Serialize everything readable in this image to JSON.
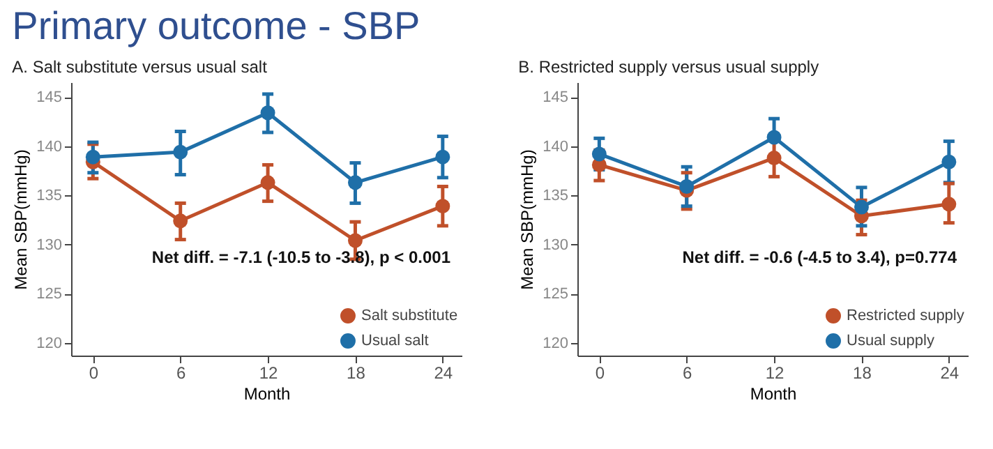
{
  "chart_data": [
    {
      "type": "other",
      "title": "Primary outcome - SBP"
    },
    {
      "type": "line",
      "title": "A. Salt substitute versus usual salt",
      "xlabel": "Month",
      "ylabel": "Mean SBP(mmHg)",
      "x": [
        0,
        6,
        12,
        18,
        24
      ],
      "xlim": [
        -1.5,
        25.3
      ],
      "xticks": [
        0,
        6,
        12,
        18,
        24
      ],
      "ylim": [
        118.7,
        146.5
      ],
      "yticks": [
        120,
        125,
        130,
        135,
        140,
        145
      ],
      "legend": "bottom right",
      "marker": "circle",
      "series": [
        {
          "name": "Salt substitute",
          "color": "#c0502a",
          "values": [
            138.4,
            132.4,
            136.3,
            130.4,
            133.9
          ],
          "errors": [
            [
              136.7,
              140.2
            ],
            [
              130.5,
              134.2
            ],
            [
              134.4,
              138.1
            ],
            [
              128.5,
              132.3
            ],
            [
              131.9,
              135.9
            ]
          ]
        },
        {
          "name": "Usual salt",
          "color": "#1f6fa8",
          "values": [
            138.9,
            139.4,
            143.4,
            136.3,
            138.9
          ],
          "errors": [
            [
              137.3,
              140.4
            ],
            [
              137.1,
              141.5
            ],
            [
              141.4,
              145.3
            ],
            [
              134.2,
              138.3
            ],
            [
              136.8,
              141.0
            ]
          ]
        }
      ],
      "annotations": [
        "Net diff. = -7.1 (-10.5 to -3.8), p < 0.001"
      ]
    },
    {
      "type": "line",
      "title": "B. Restricted supply versus usual supply",
      "xlabel": "Month",
      "ylabel": "Mean SBP(mmHg)",
      "x": [
        0,
        6,
        12,
        18,
        24
      ],
      "xlim": [
        -1.5,
        25.3
      ],
      "xticks": [
        0,
        6,
        12,
        18,
        24
      ],
      "ylim": [
        118.7,
        146.5
      ],
      "yticks": [
        120,
        125,
        130,
        135,
        140,
        145
      ],
      "legend": "bottom right",
      "marker": "circle",
      "series": [
        {
          "name": "Restricted supply",
          "color": "#c0502a",
          "values": [
            138.1,
            135.5,
            138.8,
            132.9,
            134.1
          ],
          "errors": [
            [
              136.5,
              139.6
            ],
            [
              133.6,
              137.3
            ],
            [
              136.9,
              140.7
            ],
            [
              131.0,
              134.5
            ],
            [
              132.2,
              136.2
            ]
          ]
        },
        {
          "name": "Usual supply",
          "color": "#1f6fa8",
          "values": [
            139.2,
            135.9,
            140.9,
            133.8,
            138.4
          ],
          "errors": [
            [
              137.6,
              140.8
            ],
            [
              133.9,
              137.9
            ],
            [
              140.9,
              142.8
            ],
            [
              131.9,
              135.8
            ],
            [
              136.3,
              140.5
            ]
          ]
        }
      ],
      "annotations": [
        "Net diff. = -0.6 (-4.5 to 3.4), p=0.774"
      ]
    }
  ]
}
